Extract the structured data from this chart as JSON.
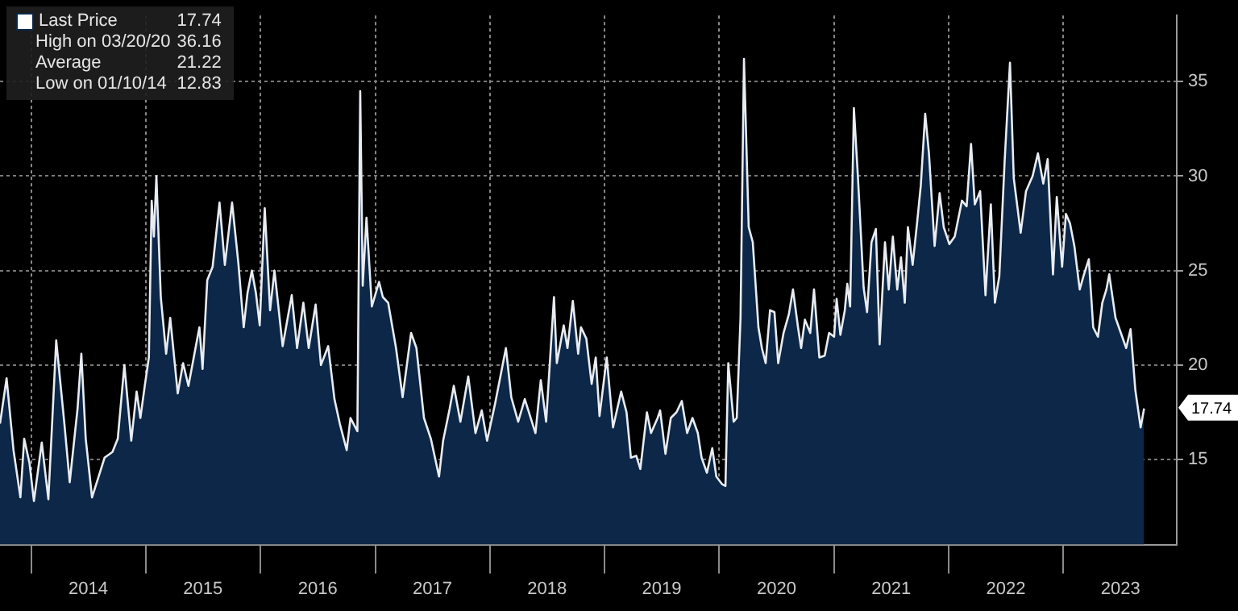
{
  "chart_data": {
    "type": "area",
    "xlim": [
      "2013-09-24",
      "2023-12-28"
    ],
    "xticks": [
      {
        "value": "2014-01-01",
        "label": null
      },
      {
        "value": "2014-07-02",
        "label": "2014"
      },
      {
        "value": "2015-01-01",
        "label": null
      },
      {
        "value": "2015-07-02",
        "label": "2015"
      },
      {
        "value": "2016-01-01",
        "label": null
      },
      {
        "value": "2016-07-02",
        "label": "2016"
      },
      {
        "value": "2017-01-01",
        "label": null
      },
      {
        "value": "2017-07-02",
        "label": "2017"
      },
      {
        "value": "2018-01-01",
        "label": null
      },
      {
        "value": "2018-07-02",
        "label": "2018"
      },
      {
        "value": "2019-01-01",
        "label": null
      },
      {
        "value": "2019-07-02",
        "label": "2019"
      },
      {
        "value": "2020-01-01",
        "label": null
      },
      {
        "value": "2020-07-02",
        "label": "2020"
      },
      {
        "value": "2021-01-01",
        "label": null
      },
      {
        "value": "2021-07-02",
        "label": "2021"
      },
      {
        "value": "2022-01-01",
        "label": null
      },
      {
        "value": "2022-07-02",
        "label": "2022"
      },
      {
        "value": "2023-01-01",
        "label": null
      },
      {
        "value": "2023-07-02",
        "label": "2023"
      }
    ],
    "ylim": [
      10.5,
      38.5
    ],
    "yticks": [
      15,
      20,
      25,
      30,
      35
    ],
    "grid": true,
    "legend": "top left",
    "annotations": [
      {
        "text": "17.74",
        "x": "2023-09-15",
        "y": 17.74
      },
      "High on 03/20/20",
      "36.16",
      "Average",
      "21.22",
      "Low on 01/10/14",
      "12.83"
    ],
    "series": [
      {
        "name": "Last Price",
        "color": "#0c2747",
        "x": [
          "2013-09-24",
          "2013-10-15",
          "2013-11-06",
          "2013-11-28",
          "2013-12-10",
          "2013-12-27",
          "2014-01-10",
          "2014-02-04",
          "2014-02-25",
          "2014-03-22",
          "2014-04-17",
          "2014-05-04",
          "2014-05-29",
          "2014-06-10",
          "2014-06-24",
          "2014-07-14",
          "2014-08-06",
          "2014-08-23",
          "2014-09-17",
          "2014-10-04",
          "2014-10-25",
          "2014-11-16",
          "2014-12-03",
          "2014-12-15",
          "2014-12-29",
          "2015-01-11",
          "2015-01-20",
          "2015-01-27",
          "2015-02-04",
          "2015-02-18",
          "2015-03-07",
          "2015-03-20",
          "2015-04-13",
          "2015-04-30",
          "2015-05-17",
          "2015-06-04",
          "2015-06-21",
          "2015-07-01",
          "2015-07-16",
          "2015-08-02",
          "2015-08-24",
          "2015-09-10",
          "2015-10-03",
          "2015-10-23",
          "2015-11-09",
          "2015-11-21",
          "2015-12-05",
          "2015-12-18",
          "2015-12-30",
          "2016-01-15",
          "2016-02-01",
          "2016-02-15",
          "2016-03-12",
          "2016-04-10",
          "2016-04-27",
          "2016-05-17",
          "2016-06-03",
          "2016-06-25",
          "2016-07-12",
          "2016-08-04",
          "2016-08-24",
          "2016-09-10",
          "2016-10-02",
          "2016-10-14",
          "2016-11-05",
          "2016-11-14",
          "2016-11-22",
          "2016-12-04",
          "2016-12-21",
          "2017-01-13",
          "2017-01-25",
          "2017-02-11",
          "2017-03-08",
          "2017-03-29",
          "2017-04-25",
          "2017-05-12",
          "2017-06-05",
          "2017-06-27",
          "2017-07-23",
          "2017-08-05",
          "2017-08-26",
          "2017-09-08",
          "2017-09-29",
          "2017-10-24",
          "2017-11-16",
          "2017-12-06",
          "2017-12-23",
          "2018-01-18",
          "2018-02-21",
          "2018-03-10",
          "2018-04-01",
          "2018-04-22",
          "2018-05-26",
          "2018-06-12",
          "2018-06-29",
          "2018-07-24",
          "2018-08-02",
          "2018-08-24",
          "2018-09-05",
          "2018-09-22",
          "2018-10-09",
          "2018-10-18",
          "2018-11-04",
          "2018-11-21",
          "2018-12-04",
          "2018-12-16",
          "2019-01-08",
          "2019-01-28",
          "2019-02-23",
          "2019-03-12",
          "2019-03-26",
          "2019-04-12",
          "2019-04-25",
          "2019-05-16",
          "2019-05-29",
          "2019-06-19",
          "2019-06-27",
          "2019-07-14",
          "2019-07-31",
          "2019-08-18",
          "2019-09-04",
          "2019-09-21",
          "2019-10-08",
          "2019-10-25",
          "2019-11-06",
          "2019-11-23",
          "2019-12-10",
          "2019-12-23",
          "2020-01-10",
          "2020-01-21",
          "2020-01-30",
          "2020-02-16",
          "2020-02-26",
          "2020-03-09",
          "2020-03-20",
          "2020-04-04",
          "2020-04-17",
          "2020-05-05",
          "2020-05-16",
          "2020-05-28",
          "2020-06-11",
          "2020-06-25",
          "2020-07-07",
          "2020-07-24",
          "2020-08-10",
          "2020-08-23",
          "2020-09-08",
          "2020-09-18",
          "2020-09-30",
          "2020-10-17",
          "2020-10-29",
          "2020-11-15",
          "2020-12-02",
          "2020-12-16",
          "2021-01-01",
          "2021-01-09",
          "2021-01-21",
          "2021-02-04",
          "2021-02-12",
          "2021-02-21",
          "2021-03-05",
          "2021-03-18",
          "2021-04-05",
          "2021-04-16",
          "2021-04-30",
          "2021-05-14",
          "2021-05-26",
          "2021-06-12",
          "2021-06-24",
          "2021-07-07",
          "2021-07-21",
          "2021-08-02",
          "2021-08-14",
          "2021-08-24",
          "2021-09-08",
          "2021-09-22",
          "2021-10-04",
          "2021-10-18",
          "2021-10-30",
          "2021-11-17",
          "2021-12-03",
          "2021-12-16",
          "2022-01-03",
          "2022-01-20",
          "2022-02-12",
          "2022-02-27",
          "2022-03-13",
          "2022-03-25",
          "2022-04-11",
          "2022-04-28",
          "2022-05-15",
          "2022-05-28",
          "2022-06-11",
          "2022-06-28",
          "2022-07-15",
          "2022-07-27",
          "2022-08-18",
          "2022-09-04",
          "2022-09-25",
          "2022-10-12",
          "2022-10-29",
          "2022-11-12",
          "2022-11-29",
          "2022-12-11",
          "2022-12-28",
          "2023-01-09",
          "2023-01-22",
          "2023-02-05",
          "2023-02-22",
          "2023-03-06",
          "2023-03-23",
          "2023-04-06",
          "2023-04-21",
          "2023-05-05",
          "2023-05-18",
          "2023-05-27",
          "2023-06-16",
          "2023-07-03",
          "2023-07-20",
          "2023-08-03",
          "2023-08-18",
          "2023-09-04",
          "2023-09-15"
        ],
        "values": [
          16.9,
          19.3,
          15.5,
          13.0,
          16.1,
          14.8,
          12.8,
          15.9,
          12.9,
          21.3,
          16.9,
          13.8,
          17.7,
          20.6,
          16.1,
          13.0,
          14.2,
          15.1,
          15.4,
          16.1,
          20.0,
          16.0,
          18.6,
          17.2,
          18.9,
          20.4,
          28.7,
          26.8,
          30.0,
          23.6,
          20.6,
          22.5,
          18.5,
          20.1,
          18.9,
          20.5,
          22.0,
          19.8,
          24.5,
          25.2,
          28.6,
          25.3,
          28.6,
          25.4,
          22.0,
          23.8,
          25.0,
          23.8,
          22.1,
          28.3,
          22.9,
          25.0,
          21.0,
          23.7,
          20.9,
          23.3,
          20.9,
          23.2,
          20.0,
          21.0,
          18.2,
          16.9,
          15.5,
          17.2,
          16.5,
          34.5,
          24.2,
          27.8,
          23.1,
          24.4,
          23.6,
          23.3,
          20.9,
          18.3,
          21.7,
          20.9,
          17.2,
          16.1,
          14.1,
          16.0,
          17.7,
          18.9,
          17.0,
          19.4,
          16.4,
          17.6,
          16.0,
          18.0,
          20.9,
          18.3,
          17.0,
          18.2,
          16.4,
          19.2,
          17.0,
          23.6,
          20.1,
          22.1,
          20.9,
          23.4,
          20.6,
          22.0,
          21.4,
          19.0,
          20.4,
          17.3,
          20.4,
          16.7,
          18.6,
          17.5,
          15.1,
          15.2,
          14.5,
          17.5,
          16.4,
          17.2,
          17.6,
          15.3,
          17.2,
          17.5,
          18.1,
          16.4,
          17.2,
          16.4,
          15.1,
          14.3,
          15.6,
          14.1,
          13.7,
          13.6,
          20.1,
          17.0,
          17.2,
          22.5,
          36.2,
          27.3,
          26.5,
          22.0,
          20.9,
          20.1,
          22.9,
          22.8,
          20.1,
          21.7,
          22.7,
          24.0,
          22.0,
          20.9,
          22.4,
          21.7,
          24.0,
          20.4,
          20.5,
          21.7,
          21.5,
          23.5,
          21.6,
          22.9,
          24.3,
          23.1,
          33.6,
          29.9,
          24.1,
          22.8,
          26.5,
          27.2,
          21.1,
          26.5,
          24.0,
          26.8,
          24.0,
          25.7,
          23.3,
          27.3,
          25.3,
          27.5,
          29.5,
          33.3,
          31.2,
          26.3,
          29.1,
          27.3,
          26.4,
          26.8,
          28.7,
          28.4,
          31.7,
          28.5,
          29.2,
          23.7,
          28.5,
          23.3,
          24.7,
          30.8,
          36.0,
          29.9,
          27.0,
          29.2,
          30.0,
          31.2,
          29.6,
          30.9,
          24.8,
          28.9,
          25.2,
          28.0,
          27.5,
          26.3,
          24.0,
          24.7,
          25.6,
          22.0,
          21.5,
          23.3,
          24.0,
          24.8,
          22.5,
          21.7,
          20.9,
          21.9,
          18.7,
          16.7,
          17.7
        ]
      }
    ]
  }
}
